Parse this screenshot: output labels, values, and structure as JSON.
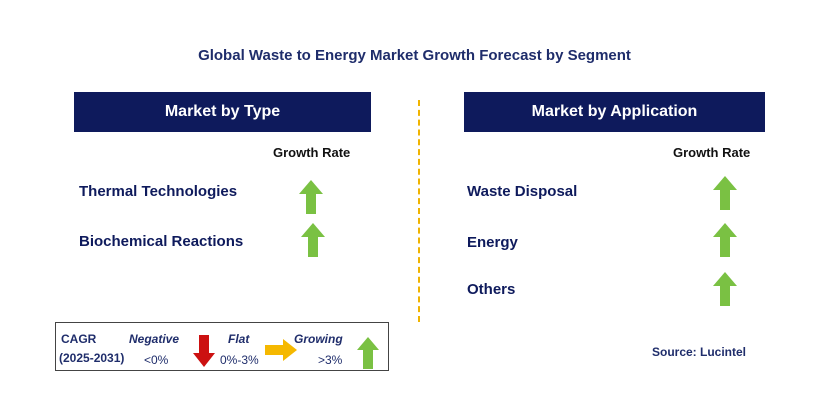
{
  "title": "Global Waste to Energy Market Growth Forecast by Segment",
  "left_panel": {
    "header": "Market by Type",
    "growth_rate_label": "Growth Rate",
    "rows": [
      {
        "label": "Thermal Technologies",
        "trend": "growing"
      },
      {
        "label": "Biochemical Reactions",
        "trend": "growing"
      }
    ]
  },
  "right_panel": {
    "header": "Market by Application",
    "growth_rate_label": "Growth Rate",
    "rows": [
      {
        "label": "Waste Disposal",
        "trend": "growing"
      },
      {
        "label": "Energy",
        "trend": "growing"
      },
      {
        "label": "Others",
        "trend": "growing"
      }
    ]
  },
  "legend": {
    "cagr_label": "CAGR",
    "period": "(2025-2031)",
    "negative_label": "Negative",
    "negative_range": "<0%",
    "flat_label": "Flat",
    "flat_range": "0%-3%",
    "growing_label": "Growing",
    "growing_range": ">3%"
  },
  "source": "Source: Lucintel",
  "colors": {
    "header_bg": "#0e1a5c",
    "growing_arrow": "#7ac143",
    "negative_arrow": "#cc1111",
    "flat_arrow": "#f5b800",
    "divider": "#f0b400"
  },
  "icons": [
    "arrow-up-icon",
    "arrow-down-icon",
    "arrow-right-icon"
  ]
}
